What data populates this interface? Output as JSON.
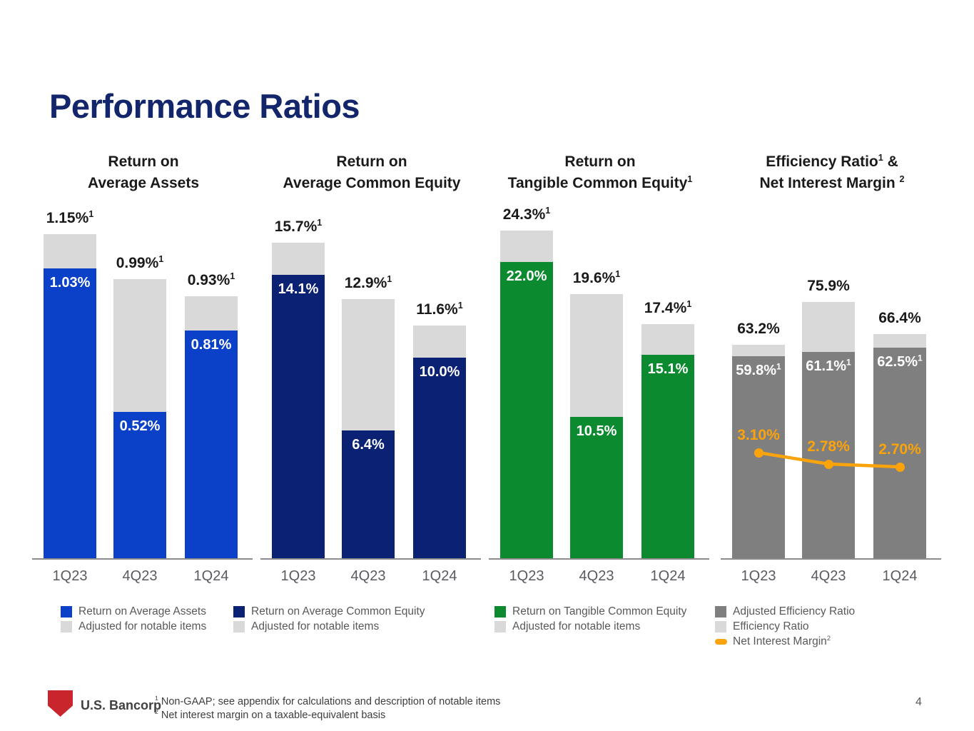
{
  "slide": {
    "title": "Performance Ratios",
    "page_number": "4",
    "logo_text": "U.S. Bancorp",
    "footnotes": [
      {
        "sup": "1",
        "text": "Non-GAAP; see appendix for calculations and description of notable items"
      },
      {
        "sup": "2",
        "text": "Net interest margin on a taxable-equivalent basis"
      }
    ]
  },
  "colors": {
    "title_navy": "#13256B",
    "blue": "#0B41C9",
    "navy": "#0B2173",
    "green": "#0C8A2F",
    "dark_gray": "#7F7F7F",
    "light_gray": "#D9D9D9",
    "orange": "#FBA30B",
    "logo_red": "#C9252D"
  },
  "chart_data": [
    {
      "type": "bar",
      "stacked": true,
      "title": "Return on Average Assets",
      "title_lines": [
        {
          "pre": "Return on",
          "sup": "",
          "post": ""
        },
        {
          "pre": "Average Assets",
          "sup": "",
          "post": ""
        }
      ],
      "categories": [
        "1Q23",
        "4Q23",
        "1Q24"
      ],
      "unit": "%",
      "ylim": [
        0,
        1.15
      ],
      "series": [
        {
          "name": "Return on Average Assets",
          "values": [
            1.03,
            0.52,
            0.81
          ],
          "labels": [
            "1.03%",
            "0.52%",
            "0.81%"
          ],
          "label_sup": "",
          "color": "#0B41C9"
        },
        {
          "name": "Adjusted for notable items",
          "values": [
            1.15,
            0.99,
            0.93
          ],
          "labels": [
            "1.15%",
            "0.99%",
            "0.93%"
          ],
          "label_sup": "1",
          "color": "#D9D9D9"
        }
      ],
      "legend": [
        {
          "label": "Return on Average Assets",
          "color": "#0B41C9",
          "marker": "square"
        },
        {
          "label": "Adjusted for notable items",
          "color": "#D9D9D9",
          "marker": "square"
        }
      ]
    },
    {
      "type": "bar",
      "stacked": true,
      "title": "Return on Average Common Equity",
      "title_lines": [
        {
          "pre": "Return on",
          "sup": "",
          "post": ""
        },
        {
          "pre": "Average Common Equity",
          "sup": "",
          "post": ""
        }
      ],
      "categories": [
        "1Q23",
        "4Q23",
        "1Q24"
      ],
      "unit": "%",
      "ylim": [
        0,
        15.7
      ],
      "series": [
        {
          "name": "Return on Average Common Equity",
          "values": [
            14.1,
            6.4,
            10.0
          ],
          "labels": [
            "14.1%",
            "6.4%",
            "10.0%"
          ],
          "label_sup": "",
          "color": "#0B2173"
        },
        {
          "name": "Adjusted for notable items",
          "values": [
            15.7,
            12.9,
            11.6
          ],
          "labels": [
            "15.7%",
            "12.9%",
            "11.6%"
          ],
          "label_sup": "1",
          "color": "#D9D9D9"
        }
      ],
      "legend": [
        {
          "label": "Return on Average Common Equity",
          "color": "#0B2173",
          "marker": "square"
        },
        {
          "label": "Adjusted for notable items",
          "color": "#D9D9D9",
          "marker": "square"
        }
      ]
    },
    {
      "type": "bar",
      "stacked": true,
      "title": "Return on Tangible Common Equity",
      "title_lines": [
        {
          "pre": "Return on",
          "sup": "",
          "post": ""
        },
        {
          "pre": "Tangible Common Equity",
          "sup": "1",
          "post": ""
        }
      ],
      "categories": [
        "1Q23",
        "4Q23",
        "1Q24"
      ],
      "unit": "%",
      "ylim": [
        0,
        24.3
      ],
      "series": [
        {
          "name": "Return on Tangible Common Equity",
          "values": [
            22.0,
            10.5,
            15.1
          ],
          "labels": [
            "22.0%",
            "10.5%",
            "15.1%"
          ],
          "label_sup": "",
          "color": "#0C8A2F"
        },
        {
          "name": "Adjusted for notable items",
          "values": [
            24.3,
            19.6,
            17.4
          ],
          "labels": [
            "24.3%",
            "19.6%",
            "17.4%"
          ],
          "label_sup": "1",
          "color": "#D9D9D9"
        }
      ],
      "legend": [
        {
          "label": "Return on Tangible Common Equity",
          "color": "#0C8A2F",
          "marker": "square"
        },
        {
          "label": "Adjusted for notable items",
          "color": "#D9D9D9",
          "marker": "square"
        }
      ]
    },
    {
      "type": "bar+line",
      "stacked": true,
      "title": "Efficiency Ratio & Net Interest Margin",
      "title_lines": [
        {
          "pre": "Efficiency Ratio",
          "sup": "1",
          "post": " &"
        },
        {
          "pre": "Net Interest Margin ",
          "sup": "2",
          "post": ""
        }
      ],
      "categories": [
        "1Q23",
        "4Q23",
        "1Q24"
      ],
      "unit": "%",
      "ylim": [
        0,
        75.9
      ],
      "series": [
        {
          "name": "Adjusted Efficiency Ratio",
          "values": [
            59.8,
            61.1,
            62.5
          ],
          "labels": [
            "59.8%",
            "61.1%",
            "62.5%"
          ],
          "label_sup": "1",
          "color": "#7F7F7F"
        },
        {
          "name": "Efficiency Ratio",
          "values": [
            63.2,
            75.9,
            66.4
          ],
          "labels": [
            "63.2%",
            "75.9%",
            "66.4%"
          ],
          "label_sup": "",
          "color": "#D9D9D9"
        },
        {
          "name": "Net Interest Margin",
          "type": "line",
          "values": [
            3.1,
            2.78,
            2.7
          ],
          "labels": [
            "3.10%",
            "2.78%",
            "2.70%"
          ],
          "color": "#FBA30B"
        }
      ],
      "legend": [
        {
          "label": "Adjusted Efficiency Ratio",
          "color": "#7F7F7F",
          "marker": "square"
        },
        {
          "label": "Efficiency Ratio",
          "color": "#D9D9D9",
          "marker": "square"
        },
        {
          "label": "Net Interest Margin",
          "sup": "2",
          "color": "#FBA30B",
          "marker": "line-dot"
        }
      ]
    }
  ]
}
